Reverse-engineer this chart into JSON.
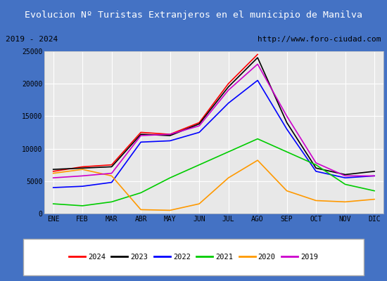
{
  "title": "Evolucion Nº Turistas Extranjeros en el municipio de Manilva",
  "subtitle_left": "2019 - 2024",
  "subtitle_right": "http://www.foro-ciudad.com",
  "months": [
    "ENE",
    "FEB",
    "MAR",
    "ABR",
    "MAY",
    "JUN",
    "JUL",
    "AGO",
    "SEP",
    "OCT",
    "NOV",
    "DIC"
  ],
  "ylim": [
    0,
    25000
  ],
  "yticks": [
    0,
    5000,
    10000,
    15000,
    20000,
    25000
  ],
  "series": {
    "2024": {
      "color": "#ff0000",
      "values": [
        6500,
        7200,
        7500,
        12500,
        12200,
        14000,
        20000,
        24500,
        null,
        null,
        null,
        null
      ]
    },
    "2023": {
      "color": "#000000",
      "values": [
        6800,
        7000,
        7200,
        12200,
        12000,
        13800,
        19500,
        24000,
        14000,
        7000,
        6000,
        6500
      ]
    },
    "2022": {
      "color": "#0000ff",
      "values": [
        4000,
        4200,
        4800,
        11000,
        11200,
        12500,
        17000,
        20500,
        13000,
        6500,
        5500,
        5800
      ]
    },
    "2021": {
      "color": "#00cc00",
      "values": [
        1500,
        1200,
        1800,
        3200,
        5500,
        7500,
        9500,
        11500,
        9500,
        7500,
        4500,
        3500
      ]
    },
    "2020": {
      "color": "#ff9900",
      "values": [
        6200,
        6800,
        5800,
        600,
        500,
        1500,
        5500,
        8200,
        3500,
        2000,
        1800,
        2200
      ]
    },
    "2019": {
      "color": "#cc00cc",
      "values": [
        5500,
        5800,
        6200,
        12000,
        12200,
        13500,
        19000,
        23000,
        15000,
        7800,
        5800,
        5800
      ]
    }
  },
  "title_bg_color": "#4472c4",
  "title_text_color": "#ffffff",
  "plot_bg_color": "#e8e8e8",
  "grid_color": "#ffffff",
  "border_color": "#4472c4",
  "legend_order": [
    "2024",
    "2023",
    "2022",
    "2021",
    "2020",
    "2019"
  ],
  "fig_width": 5.5,
  "fig_height": 4.0,
  "fig_dpi": 100
}
